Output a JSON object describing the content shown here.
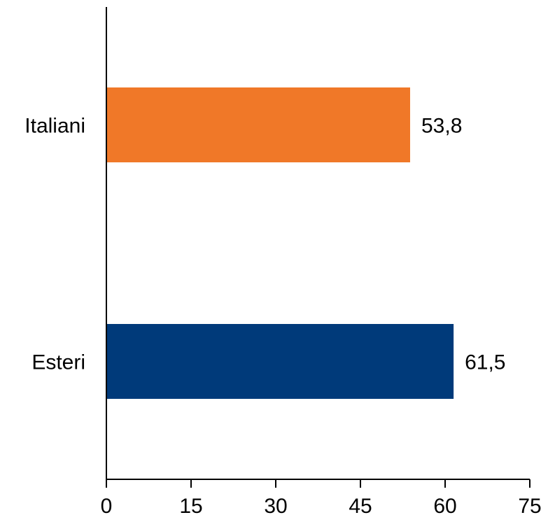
{
  "chart_data": {
    "type": "bar",
    "orientation": "horizontal",
    "categories": [
      "Italiani",
      "Esteri"
    ],
    "values": [
      53.8,
      61.5
    ],
    "value_labels": [
      "53,8",
      "61,5"
    ],
    "colors": [
      "#f07828",
      "#003a7a"
    ],
    "title": "",
    "xlabel": "",
    "ylabel": "",
    "xlim": [
      0,
      75
    ],
    "xticks": [
      0,
      15,
      30,
      45,
      60,
      75
    ],
    "grid": false,
    "legend": "none"
  }
}
